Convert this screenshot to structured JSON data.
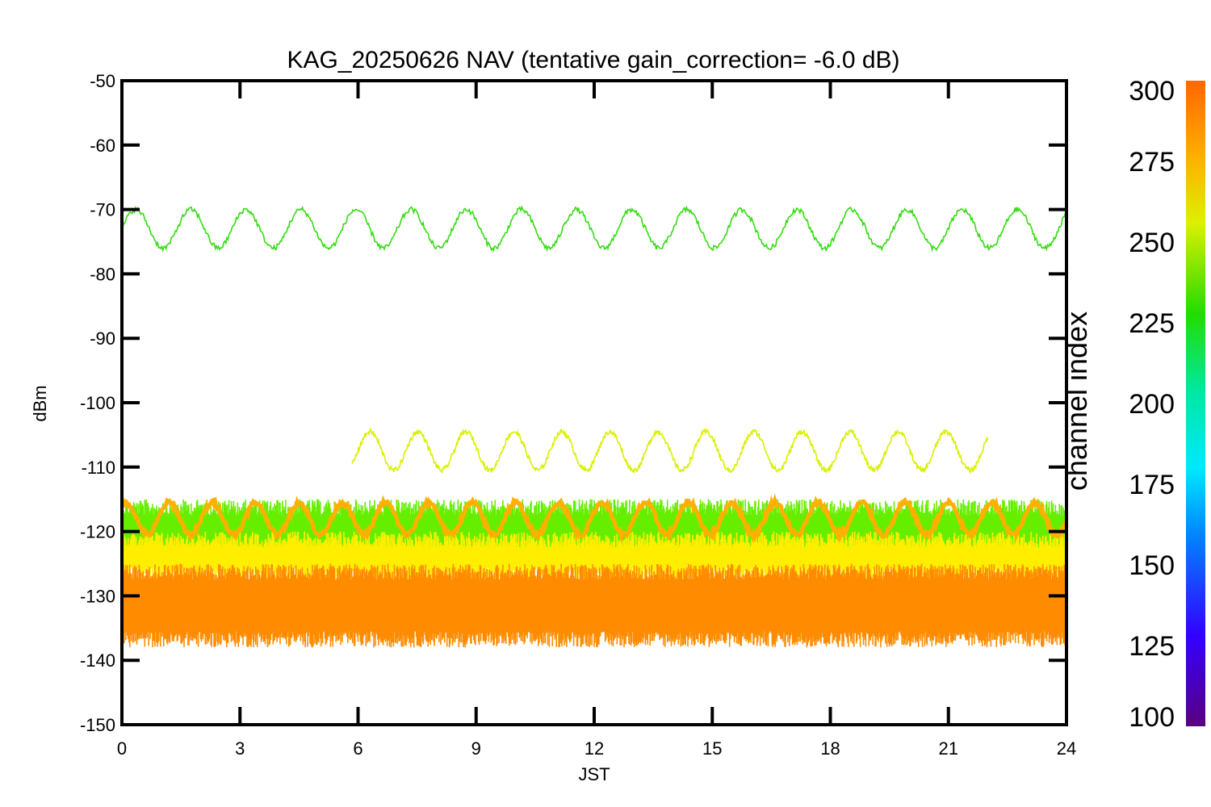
{
  "chart_data": {
    "type": "line",
    "title": "KAG_20250626 NAV (tentative gain_correction= -6.0 dB)",
    "xlabel": "JST",
    "ylabel": "dBm",
    "xlim": [
      0,
      24
    ],
    "ylim": [
      -150,
      -50
    ],
    "x_ticks": [
      "0",
      "3",
      "6",
      "9",
      "12",
      "15",
      "18",
      "21",
      "24"
    ],
    "y_ticks": [
      "-50",
      "-60",
      "-70",
      "-80",
      "-90",
      "-100",
      "-110",
      "-120",
      "-130",
      "-140",
      "-150"
    ],
    "grid": false,
    "colorbar": {
      "label": "channel index",
      "range": [
        100,
        300
      ],
      "ticks": [
        "300",
        "275",
        "250",
        "225",
        "200",
        "175",
        "150",
        "125",
        "100"
      ],
      "colormap": "rainbow"
    },
    "series": [
      {
        "channel_index": 240,
        "color": "#33dd10",
        "kind": "periodic",
        "x_range": [
          0,
          24
        ],
        "mean": -73,
        "amplitude": 3,
        "period_hours": 1.4,
        "phase_hours": 0.35
      },
      {
        "channel_index": 265,
        "color": "#d9f000",
        "kind": "periodic",
        "x_range": [
          5.85,
          22.0
        ],
        "mean": -107.5,
        "amplitude": 3,
        "period_hours": 1.22,
        "phase_hours": 0.2
      },
      {
        "channel_index": 280,
        "color": "#ffb000",
        "kind": "periodic",
        "x_range": [
          0,
          24
        ],
        "mean": -118,
        "amplitude": 2.5,
        "period_hours": 1.1,
        "phase_hours": 0.1
      },
      {
        "channel_index": 250,
        "color": "#66ee00",
        "kind": "noise_band",
        "x_range": [
          0,
          24
        ],
        "low": -125,
        "high": -115
      },
      {
        "channel_index": 270,
        "color": "#ffee00",
        "kind": "noise_band",
        "x_range": [
          0,
          24
        ],
        "low": -128,
        "high": -120
      },
      {
        "channel_index": 290,
        "color": "#ff8c00",
        "kind": "noise_band",
        "x_range": [
          0,
          24
        ],
        "low": -138,
        "high": -125
      }
    ]
  }
}
